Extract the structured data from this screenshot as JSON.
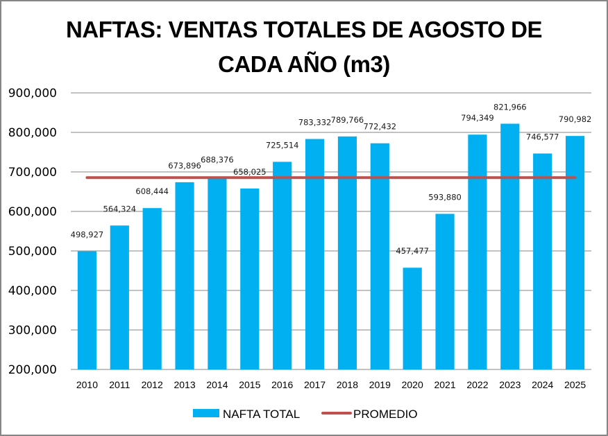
{
  "chart_data": {
    "type": "bar",
    "title_line1": "NAFTAS: VENTAS TOTALES DE AGOSTO DE",
    "title_line2": "CADA AÑO (m3)",
    "xlabel": "",
    "ylabel": "",
    "categories": [
      "2010",
      "2011",
      "2012",
      "2013",
      "2014",
      "2015",
      "2016",
      "2017",
      "2018",
      "2019",
      "2020",
      "2021",
      "2022",
      "2023",
      "2024",
      "2025"
    ],
    "series": [
      {
        "name": "NAFTA TOTAL",
        "type": "bar",
        "color": "#00B0F0",
        "values": [
          498927,
          564324,
          608444,
          673896,
          688376,
          658025,
          725514,
          783332,
          789766,
          772432,
          457477,
          593880,
          794349,
          821966,
          746577,
          790982
        ],
        "data_labels": [
          "498,927",
          "564,324",
          "608,444",
          "673,896",
          "688,376",
          "658,025",
          "725,514",
          "783,332",
          "789,766",
          "772,432",
          "457,477",
          "593,880",
          "794,349",
          "821,966",
          "746,577",
          "790,982"
        ]
      },
      {
        "name": "PROMEDIO",
        "type": "line",
        "color": "#C0504D",
        "value": 685517
      }
    ],
    "ylim": [
      200000,
      900000
    ],
    "yticks": [
      200000,
      300000,
      400000,
      500000,
      600000,
      700000,
      800000,
      900000
    ],
    "ytick_labels": [
      "200,000",
      "300,000",
      "400,000",
      "500,000",
      "600,000",
      "700,000",
      "800,000",
      "900,000"
    ],
    "grid": true,
    "legend_position": "bottom"
  }
}
